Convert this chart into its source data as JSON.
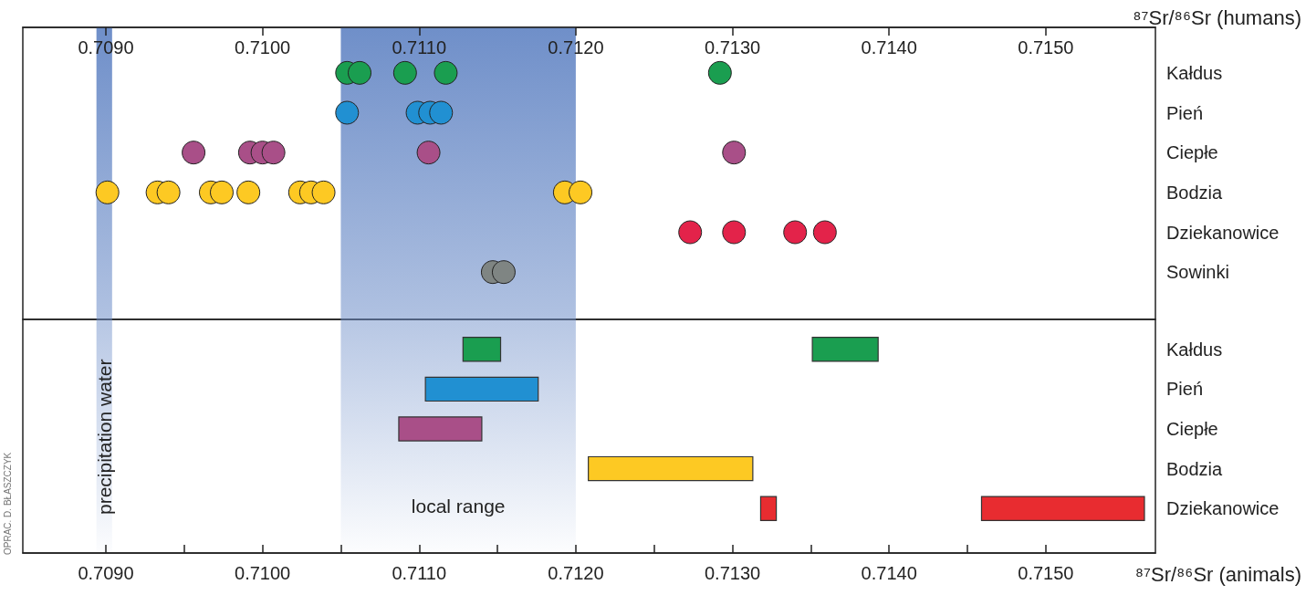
{
  "chart_data": [
    {
      "type": "scatter",
      "orientation": "horizontal",
      "xlabel": "⁸⁷Sr/⁸⁶Sr (humans)",
      "xlim": [
        0.70847,
        0.7157
      ],
      "xticks": [
        {
          "value": 0.709,
          "label": "0.7090"
        },
        {
          "value": 0.71,
          "label": "0.7100"
        },
        {
          "value": 0.711,
          "label": "0.7110"
        },
        {
          "value": 0.712,
          "label": "0.7120"
        },
        {
          "value": 0.713,
          "label": "0.7130"
        },
        {
          "value": 0.714,
          "label": "0.7140"
        },
        {
          "value": 0.715,
          "label": "0.7150"
        }
      ],
      "categories": [
        "Kałdus",
        "Pień",
        "Ciepłe",
        "Bodzia",
        "Dziekanowice",
        "Sowinki"
      ],
      "marker": "circle",
      "series": [
        {
          "color": "#1a9e50",
          "x": [
            "Kałdus",
            "Kałdus",
            "Kałdus",
            "Kałdus",
            "Kałdus"
          ],
          "values": [
            0.71054,
            0.71062,
            0.71091,
            0.71117,
            0.71292
          ]
        },
        {
          "color": "#2190d2",
          "x": [
            "Pień",
            "Pień",
            "Pień",
            "Pień"
          ],
          "values": [
            0.71054,
            0.71099,
            0.71107,
            0.71114
          ]
        },
        {
          "color": "#a94f88",
          "x": [
            "Ciepłe",
            "Ciepłe",
            "Ciepłe",
            "Ciepłe",
            "Ciepłe",
            "Ciepłe"
          ],
          "values": [
            0.70956,
            0.70992,
            0.71,
            0.71007,
            0.71106,
            0.71301
          ]
        },
        {
          "color": "#fdc923",
          "x": [
            "Bodzia",
            "Bodzia",
            "Bodzia",
            "Bodzia",
            "Bodzia",
            "Bodzia",
            "Bodzia",
            "Bodzia",
            "Bodzia",
            "Bodzia",
            "Bodzia"
          ],
          "values": [
            0.70901,
            0.70933,
            0.7094,
            0.70967,
            0.70974,
            0.70991,
            0.71024,
            0.71031,
            0.71039,
            0.71193,
            0.71203
          ]
        },
        {
          "color": "#e3234a",
          "x": [
            "Dziekanowice",
            "Dziekanowice",
            "Dziekanowice",
            "Dziekanowice"
          ],
          "values": [
            0.71273,
            0.71301,
            0.7134,
            0.71359
          ]
        },
        {
          "color": "#7f8583",
          "x": [
            "Sowinki",
            "Sowinki"
          ],
          "values": [
            0.71147,
            0.71154
          ]
        }
      ],
      "bands": [
        {
          "axis": "x",
          "from": 0.70894,
          "to": 0.70904,
          "color": "#6f8fc9"
        },
        {
          "axis": "x",
          "from": 0.7105,
          "to": 0.712,
          "color": "#6f8fc9"
        }
      ]
    },
    {
      "type": "bar",
      "orientation": "horizontal",
      "xlabel": "⁸⁷Sr/⁸⁶Sr (animals)",
      "xlim": [
        0.70847,
        0.7157
      ],
      "xticks": [
        {
          "value": 0.709,
          "label": "0.7090"
        },
        {
          "value": 0.7095,
          "label": null
        },
        {
          "value": 0.71,
          "label": "0.7100"
        },
        {
          "value": 0.7105,
          "label": null
        },
        {
          "value": 0.711,
          "label": "0.7110"
        },
        {
          "value": 0.7115,
          "label": null
        },
        {
          "value": 0.712,
          "label": "0.7120"
        },
        {
          "value": 0.7125,
          "label": null
        },
        {
          "value": 0.713,
          "label": "0.7130"
        },
        {
          "value": 0.7135,
          "label": null
        },
        {
          "value": 0.714,
          "label": "0.7140"
        },
        {
          "value": 0.7145,
          "label": null
        },
        {
          "value": 0.715,
          "label": "0.7150"
        }
      ],
      "categories": [
        "Kałdus",
        "Pień",
        "Ciepłe",
        "Bodzia",
        "Dziekanowice"
      ],
      "series": [
        {
          "colors": [
            "#1a9e50",
            "#2190d2",
            "#a94f88",
            "#fdc923",
            "#e82c30"
          ],
          "base": [
            0.71128,
            0.71104,
            0.71087,
            0.71208,
            0.71318
          ],
          "values": [
            0.00024,
            0.00072,
            0.00053,
            0.00105,
            0.0001
          ]
        },
        {
          "colors": [
            "#1a9e50",
            null,
            null,
            null,
            "#e82c30"
          ],
          "base": [
            0.71351,
            null,
            null,
            null,
            0.71459
          ],
          "values": [
            0.00042,
            null,
            null,
            null,
            0.00104
          ]
        }
      ],
      "bands": [
        {
          "axis": "x",
          "from": 0.70894,
          "to": 0.70904,
          "color": "#6f8fc9",
          "label": "precipitation water"
        },
        {
          "axis": "x",
          "from": 0.7105,
          "to": 0.712,
          "color": "#6f8fc9",
          "label": "local range"
        }
      ],
      "annotations": [
        "OPRAC. D. BŁASZCZYK"
      ]
    }
  ]
}
